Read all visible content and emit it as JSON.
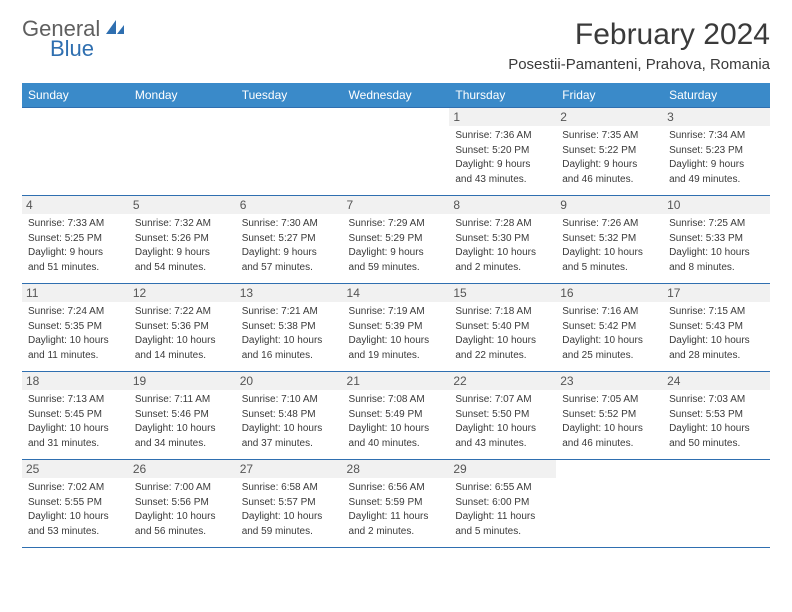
{
  "logo": {
    "text1": "General",
    "text2": "Blue",
    "logo_color": "#2f6fb0"
  },
  "header": {
    "month_title": "February 2024",
    "location": "Posestii-Pamanteni, Prahova, Romania"
  },
  "colors": {
    "header_bg": "#3a8ac9",
    "header_text": "#ffffff",
    "row_border": "#2f6fb0",
    "daynum_bg": "#f1f1f1",
    "text": "#3a3a3a"
  },
  "day_headers": [
    "Sunday",
    "Monday",
    "Tuesday",
    "Wednesday",
    "Thursday",
    "Friday",
    "Saturday"
  ],
  "weeks": [
    [
      null,
      null,
      null,
      null,
      {
        "n": "1",
        "sunrise": "Sunrise: 7:36 AM",
        "sunset": "Sunset: 5:20 PM",
        "dl1": "Daylight: 9 hours",
        "dl2": "and 43 minutes."
      },
      {
        "n": "2",
        "sunrise": "Sunrise: 7:35 AM",
        "sunset": "Sunset: 5:22 PM",
        "dl1": "Daylight: 9 hours",
        "dl2": "and 46 minutes."
      },
      {
        "n": "3",
        "sunrise": "Sunrise: 7:34 AM",
        "sunset": "Sunset: 5:23 PM",
        "dl1": "Daylight: 9 hours",
        "dl2": "and 49 minutes."
      }
    ],
    [
      {
        "n": "4",
        "sunrise": "Sunrise: 7:33 AM",
        "sunset": "Sunset: 5:25 PM",
        "dl1": "Daylight: 9 hours",
        "dl2": "and 51 minutes."
      },
      {
        "n": "5",
        "sunrise": "Sunrise: 7:32 AM",
        "sunset": "Sunset: 5:26 PM",
        "dl1": "Daylight: 9 hours",
        "dl2": "and 54 minutes."
      },
      {
        "n": "6",
        "sunrise": "Sunrise: 7:30 AM",
        "sunset": "Sunset: 5:27 PM",
        "dl1": "Daylight: 9 hours",
        "dl2": "and 57 minutes."
      },
      {
        "n": "7",
        "sunrise": "Sunrise: 7:29 AM",
        "sunset": "Sunset: 5:29 PM",
        "dl1": "Daylight: 9 hours",
        "dl2": "and 59 minutes."
      },
      {
        "n": "8",
        "sunrise": "Sunrise: 7:28 AM",
        "sunset": "Sunset: 5:30 PM",
        "dl1": "Daylight: 10 hours",
        "dl2": "and 2 minutes."
      },
      {
        "n": "9",
        "sunrise": "Sunrise: 7:26 AM",
        "sunset": "Sunset: 5:32 PM",
        "dl1": "Daylight: 10 hours",
        "dl2": "and 5 minutes."
      },
      {
        "n": "10",
        "sunrise": "Sunrise: 7:25 AM",
        "sunset": "Sunset: 5:33 PM",
        "dl1": "Daylight: 10 hours",
        "dl2": "and 8 minutes."
      }
    ],
    [
      {
        "n": "11",
        "sunrise": "Sunrise: 7:24 AM",
        "sunset": "Sunset: 5:35 PM",
        "dl1": "Daylight: 10 hours",
        "dl2": "and 11 minutes."
      },
      {
        "n": "12",
        "sunrise": "Sunrise: 7:22 AM",
        "sunset": "Sunset: 5:36 PM",
        "dl1": "Daylight: 10 hours",
        "dl2": "and 14 minutes."
      },
      {
        "n": "13",
        "sunrise": "Sunrise: 7:21 AM",
        "sunset": "Sunset: 5:38 PM",
        "dl1": "Daylight: 10 hours",
        "dl2": "and 16 minutes."
      },
      {
        "n": "14",
        "sunrise": "Sunrise: 7:19 AM",
        "sunset": "Sunset: 5:39 PM",
        "dl1": "Daylight: 10 hours",
        "dl2": "and 19 minutes."
      },
      {
        "n": "15",
        "sunrise": "Sunrise: 7:18 AM",
        "sunset": "Sunset: 5:40 PM",
        "dl1": "Daylight: 10 hours",
        "dl2": "and 22 minutes."
      },
      {
        "n": "16",
        "sunrise": "Sunrise: 7:16 AM",
        "sunset": "Sunset: 5:42 PM",
        "dl1": "Daylight: 10 hours",
        "dl2": "and 25 minutes."
      },
      {
        "n": "17",
        "sunrise": "Sunrise: 7:15 AM",
        "sunset": "Sunset: 5:43 PM",
        "dl1": "Daylight: 10 hours",
        "dl2": "and 28 minutes."
      }
    ],
    [
      {
        "n": "18",
        "sunrise": "Sunrise: 7:13 AM",
        "sunset": "Sunset: 5:45 PM",
        "dl1": "Daylight: 10 hours",
        "dl2": "and 31 minutes."
      },
      {
        "n": "19",
        "sunrise": "Sunrise: 7:11 AM",
        "sunset": "Sunset: 5:46 PM",
        "dl1": "Daylight: 10 hours",
        "dl2": "and 34 minutes."
      },
      {
        "n": "20",
        "sunrise": "Sunrise: 7:10 AM",
        "sunset": "Sunset: 5:48 PM",
        "dl1": "Daylight: 10 hours",
        "dl2": "and 37 minutes."
      },
      {
        "n": "21",
        "sunrise": "Sunrise: 7:08 AM",
        "sunset": "Sunset: 5:49 PM",
        "dl1": "Daylight: 10 hours",
        "dl2": "and 40 minutes."
      },
      {
        "n": "22",
        "sunrise": "Sunrise: 7:07 AM",
        "sunset": "Sunset: 5:50 PM",
        "dl1": "Daylight: 10 hours",
        "dl2": "and 43 minutes."
      },
      {
        "n": "23",
        "sunrise": "Sunrise: 7:05 AM",
        "sunset": "Sunset: 5:52 PM",
        "dl1": "Daylight: 10 hours",
        "dl2": "and 46 minutes."
      },
      {
        "n": "24",
        "sunrise": "Sunrise: 7:03 AM",
        "sunset": "Sunset: 5:53 PM",
        "dl1": "Daylight: 10 hours",
        "dl2": "and 50 minutes."
      }
    ],
    [
      {
        "n": "25",
        "sunrise": "Sunrise: 7:02 AM",
        "sunset": "Sunset: 5:55 PM",
        "dl1": "Daylight: 10 hours",
        "dl2": "and 53 minutes."
      },
      {
        "n": "26",
        "sunrise": "Sunrise: 7:00 AM",
        "sunset": "Sunset: 5:56 PM",
        "dl1": "Daylight: 10 hours",
        "dl2": "and 56 minutes."
      },
      {
        "n": "27",
        "sunrise": "Sunrise: 6:58 AM",
        "sunset": "Sunset: 5:57 PM",
        "dl1": "Daylight: 10 hours",
        "dl2": "and 59 minutes."
      },
      {
        "n": "28",
        "sunrise": "Sunrise: 6:56 AM",
        "sunset": "Sunset: 5:59 PM",
        "dl1": "Daylight: 11 hours",
        "dl2": "and 2 minutes."
      },
      {
        "n": "29",
        "sunrise": "Sunrise: 6:55 AM",
        "sunset": "Sunset: 6:00 PM",
        "dl1": "Daylight: 11 hours",
        "dl2": "and 5 minutes."
      },
      null,
      null
    ]
  ]
}
